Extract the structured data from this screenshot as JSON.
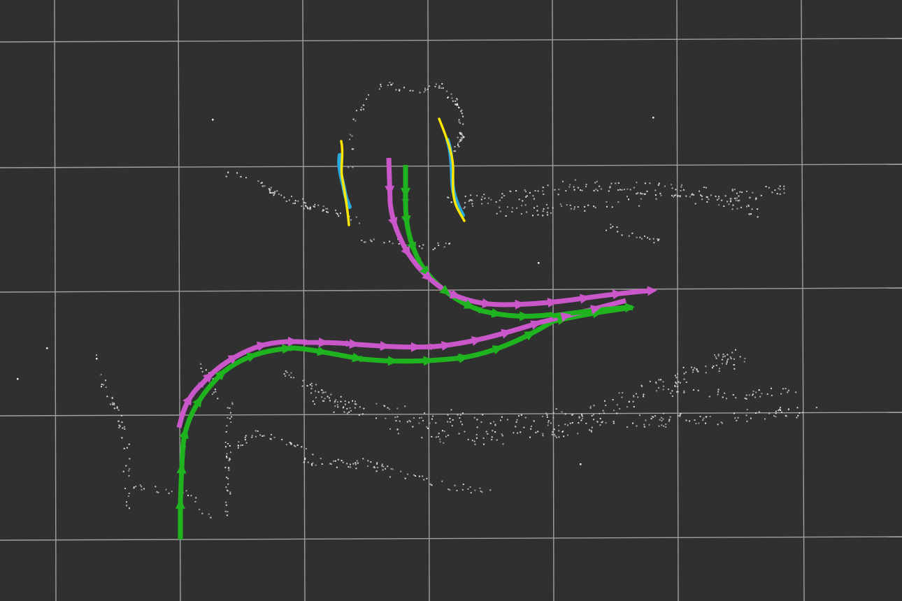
{
  "scene": {
    "background_color": "#303030",
    "grid_color": "#a0a0a0",
    "point_cloud_color": "#e8e8e8",
    "trajectory_a_color": "#c957c9",
    "trajectory_b_color": "#1fb31f",
    "lane_marker_color": "#ffe600",
    "lane_marker_edge_color": "#2aa9e0",
    "grid_visible": true
  }
}
